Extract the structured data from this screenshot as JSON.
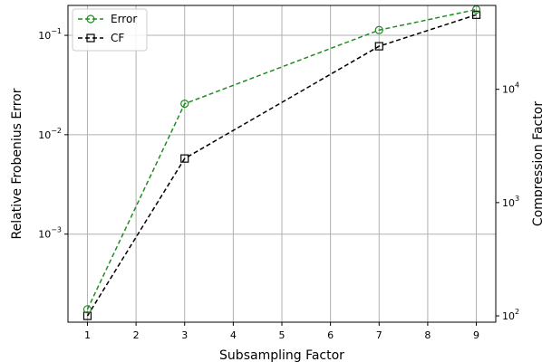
{
  "chart_data": {
    "type": "line",
    "x": [
      1,
      3,
      7,
      9
    ],
    "xlabel": "Subsampling Factor",
    "xlim": [
      0.6,
      9.4
    ],
    "xticks": [
      1,
      2,
      3,
      4,
      5,
      6,
      7,
      8,
      9
    ],
    "grid": true,
    "legend_position": "top-left",
    "left_axis": {
      "label": "Relative Frobenius Error",
      "scale": "log",
      "lim": [
        0.00013,
        0.2
      ],
      "ticks": [
        {
          "value": 0.001,
          "base": "10",
          "exp": "−3"
        },
        {
          "value": 0.01,
          "base": "10",
          "exp": "−2"
        },
        {
          "value": 0.1,
          "base": "10",
          "exp": "−1"
        }
      ]
    },
    "right_axis": {
      "label": "Compression Factor",
      "scale": "log",
      "lim": [
        88,
        55000
      ],
      "ticks": [
        {
          "value": 100,
          "base": "10",
          "exp": "2"
        },
        {
          "value": 1000,
          "base": "10",
          "exp": "3"
        },
        {
          "value": 10000,
          "base": "10",
          "exp": "4"
        }
      ]
    },
    "series": [
      {
        "name": "Error",
        "axis": "left",
        "color": "#228B22",
        "marker": "circle",
        "linestyle": "dashed",
        "values": [
          0.000175,
          0.0205,
          0.113,
          0.182
        ]
      },
      {
        "name": "CF",
        "axis": "right",
        "color": "#000000",
        "marker": "square",
        "linestyle": "dashed",
        "values": [
          100,
          2450,
          24000,
          45500
        ]
      }
    ]
  }
}
